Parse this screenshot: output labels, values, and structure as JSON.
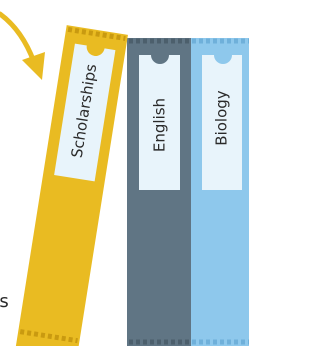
{
  "left_fragment": "s",
  "binders": [
    {
      "label": "Scholarships"
    },
    {
      "label": "English"
    },
    {
      "label": "Biology"
    }
  ]
}
